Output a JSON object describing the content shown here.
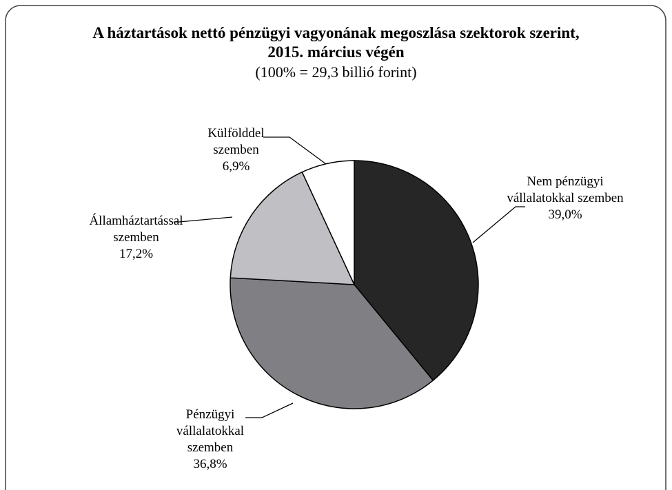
{
  "chart_data": {
    "type": "pie",
    "title": "A háztartások nettó pénzügyi vagyonának megoszlása szektorok szerint, 2015. március végén",
    "subtitle": "(100% = 29,3 billió forint)",
    "categories": [
      "Nem pénzügyi vállalatokkal szemben",
      "Pénzügyi vállalatokkal szemben",
      "Államháztartással szemben",
      "Külfölddel szemben"
    ],
    "values": [
      39.0,
      36.8,
      17.2,
      6.9
    ],
    "value_labels": [
      "39,0%",
      "36,8%",
      "17,2%",
      "6,9%"
    ],
    "colors": [
      "#262626",
      "#808084",
      "#c0c0c4",
      "#ffffff"
    ]
  }
}
